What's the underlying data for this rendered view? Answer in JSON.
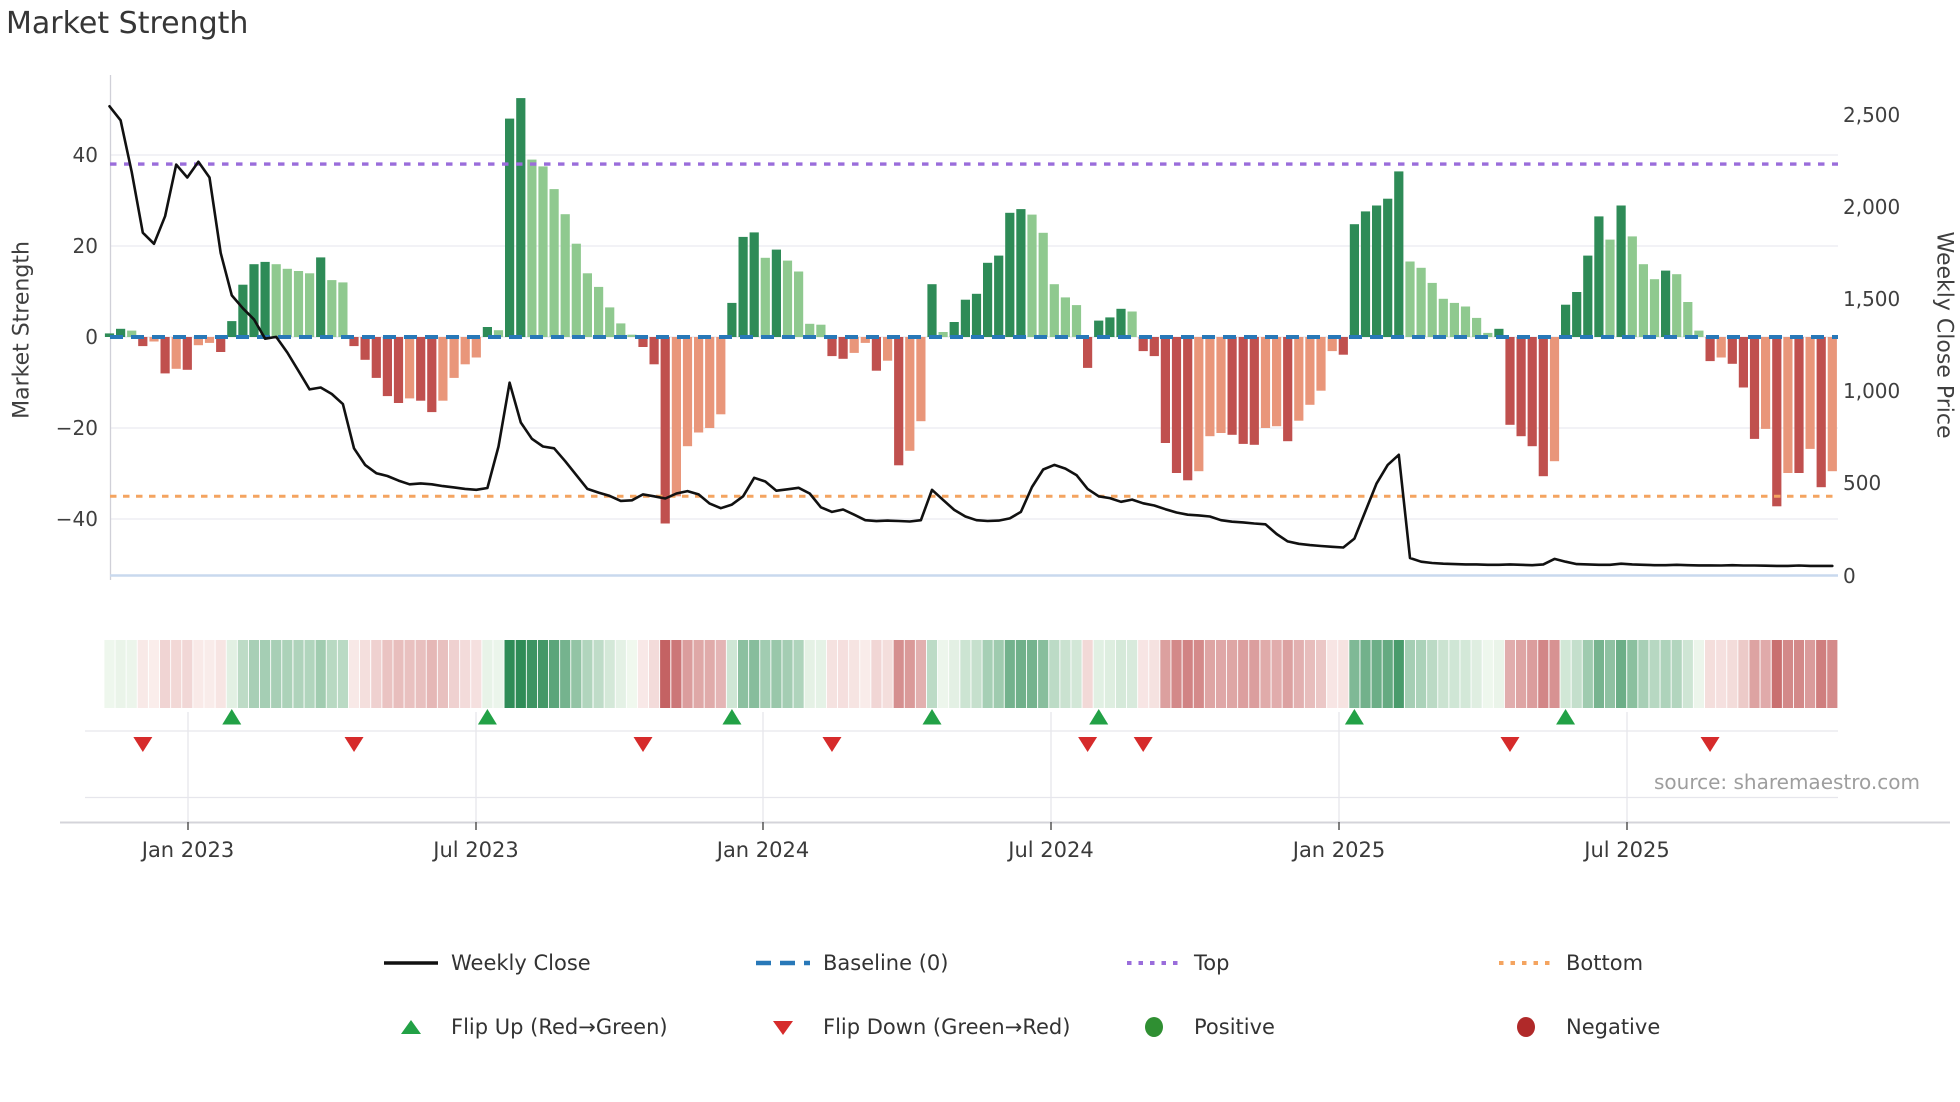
{
  "title": "Market Strength",
  "source": "source: sharemaestro.com",
  "left_axis": {
    "title": "Market Strength",
    "tick_labels": [
      "40",
      "20",
      "0",
      "−20",
      "−40"
    ],
    "tick_values": [
      40,
      20,
      0,
      -20,
      -40
    ]
  },
  "right_axis": {
    "title": "Weekly Close Price",
    "tick_labels": [
      "2,500",
      "2,000",
      "1,500",
      "1,000",
      "500",
      "0"
    ],
    "tick_values": [
      2500,
      2000,
      1500,
      1000,
      500,
      0
    ]
  },
  "x_axis": {
    "tick_labels": [
      "Jan 2023",
      "Jul 2023",
      "Jan 2024",
      "Jul 2024",
      "Jan 2025",
      "Jul 2025"
    ]
  },
  "legend": {
    "items": [
      {
        "key": "weekly_close",
        "label": "Weekly Close"
      },
      {
        "key": "baseline",
        "label": "Baseline (0)"
      },
      {
        "key": "top",
        "label": "Top"
      },
      {
        "key": "bottom",
        "label": "Bottom"
      },
      {
        "key": "flip_up",
        "label": "Flip Up (Red→Green)"
      },
      {
        "key": "flip_down",
        "label": "Flip Down (Green→Red)"
      },
      {
        "key": "positive",
        "label": "Positive"
      },
      {
        "key": "negative",
        "label": "Negative"
      }
    ]
  },
  "colors": {
    "pos_strong": "#2e8b57",
    "pos_weak": "#8fc98f",
    "neg_strong": "#c0504e",
    "neg_weak": "#e9967a",
    "close_line": "#111111",
    "baseline": "#2878b8",
    "top": "#9a6ddb",
    "bottom": "#f4a460",
    "flip_up": "#22a146",
    "flip_down": "#d62b2b",
    "positive": "#2f8f32",
    "negative": "#b02929",
    "grid": "#ebebf0",
    "spine": "#d0d0d8",
    "zero_price_line": "#c9d9ee",
    "axis_line": "#d4d4da",
    "tick_mark": "#555555"
  },
  "chart_data": {
    "type": "bar+line",
    "title": "Market Strength",
    "frequency": "weekly",
    "left_ylabel": "Market Strength",
    "right_ylabel": "Weekly Close Price",
    "left_ylim": [
      -53,
      58
    ],
    "right_ylim": [
      -25,
      2715
    ],
    "baseline_value": 0,
    "top_value": 38,
    "bottom_value": -35,
    "x_tick_labels": [
      "Jan 2023",
      "Jul 2023",
      "Jan 2024",
      "Jul 2024",
      "Jan 2025",
      "Jul 2025"
    ],
    "series": [
      {
        "name": "Market Strength (weekly bars)",
        "type": "bar",
        "values": [
          0.8,
          1.8,
          1.4,
          -2,
          -1,
          -8,
          -7,
          -7.2,
          -1.8,
          -1.3,
          -3.3,
          3.5,
          11.5,
          16,
          16.5,
          16,
          15,
          14.5,
          14,
          17.5,
          12.5,
          12,
          -2,
          -5,
          -9,
          -13,
          -14.5,
          -13.5,
          -14,
          -16.5,
          -14,
          -9,
          -6,
          -4.5,
          2.2,
          1.5,
          48,
          52.5,
          39,
          37.5,
          32.5,
          27,
          20.5,
          14,
          11,
          6.5,
          3,
          0.5,
          -2.2,
          -6,
          -41,
          -35,
          -24,
          -21,
          -20,
          -17,
          7.5,
          22,
          23,
          17.4,
          19.2,
          16.8,
          14.4,
          2.9,
          2.7,
          -4.2,
          -4.8,
          -3.5,
          -1.3,
          -7.4,
          -5.2,
          -28.2,
          -25,
          -18.5,
          11.6,
          1.1,
          3.3,
          8.2,
          9.5,
          16.3,
          17.9,
          27.3,
          28.1,
          26.9,
          22.9,
          11.6,
          8.7,
          7,
          -6.8,
          3.6,
          4.3,
          6.2,
          5.6,
          -3.1,
          -4.2,
          -23.3,
          -29.9,
          -31.5,
          -29.5,
          -21.8,
          -21.1,
          -21.5,
          -23.5,
          -23.7,
          -20,
          -19.6,
          -22.9,
          -18.4,
          -14.9,
          -11.8,
          -3.1,
          -3.9,
          24.8,
          27.6,
          28.9,
          30.4,
          36.4,
          16.6,
          15.2,
          11.9,
          8.4,
          7.5,
          6.7,
          4.2,
          0.9,
          1.8,
          -19.3,
          -21.8,
          -24,
          -30.6,
          -27.3,
          7.1,
          9.9,
          17.9,
          26.5,
          21.4,
          28.9,
          22.1,
          16,
          12.7,
          14.6,
          13.8,
          7.7,
          1.4,
          -5.3,
          -4.5,
          -5.9,
          -11.1,
          -22.4,
          -20.2,
          -37.2,
          -29.9,
          -29.9,
          -24.6,
          -33,
          -29.5
        ]
      },
      {
        "name": "Weekly Close",
        "type": "line",
        "values": [
          2546,
          2470,
          2190,
          1860,
          1800,
          1950,
          2230,
          2160,
          2245,
          2160,
          1750,
          1520,
          1450,
          1390,
          1285,
          1295,
          1210,
          1110,
          1010,
          1020,
          985,
          930,
          690,
          600,
          555,
          540,
          515,
          495,
          500,
          495,
          485,
          478,
          470,
          465,
          475,
          700,
          1046,
          830,
          742,
          700,
          690,
          620,
          545,
          470,
          450,
          432,
          405,
          408,
          440,
          430,
          418,
          445,
          458,
          440,
          390,
          365,
          385,
          430,
          530,
          510,
          460,
          468,
          476,
          445,
          370,
          345,
          358,
          330,
          300,
          295,
          298,
          296,
          293,
          300,
          465,
          410,
          356,
          320,
          300,
          296,
          298,
          310,
          345,
          480,
          575,
          600,
          580,
          545,
          470,
          430,
          420,
          400,
          412,
          392,
          380,
          360,
          342,
          330,
          326,
          320,
          300,
          292,
          288,
          282,
          278,
          225,
          185,
          172,
          165,
          160,
          156,
          152,
          200,
          350,
          500,
          600,
          655,
          95,
          75,
          68,
          64,
          62,
          60,
          60,
          58,
          58,
          60,
          58,
          56,
          60,
          90,
          75,
          62,
          60,
          58,
          58,
          64,
          60,
          58,
          56,
          56,
          58,
          56,
          55,
          55,
          54,
          56,
          54,
          54,
          53,
          52,
          52,
          54,
          52,
          52,
          52
        ]
      }
    ],
    "flip_up_weeks": [
      11,
      34,
      56,
      74,
      89,
      112,
      131
    ],
    "flip_down_weeks": [
      3,
      22,
      48,
      65,
      88,
      93,
      126,
      144
    ],
    "heatmap": "same weekly strength values rendered as red/green intensity strip"
  }
}
